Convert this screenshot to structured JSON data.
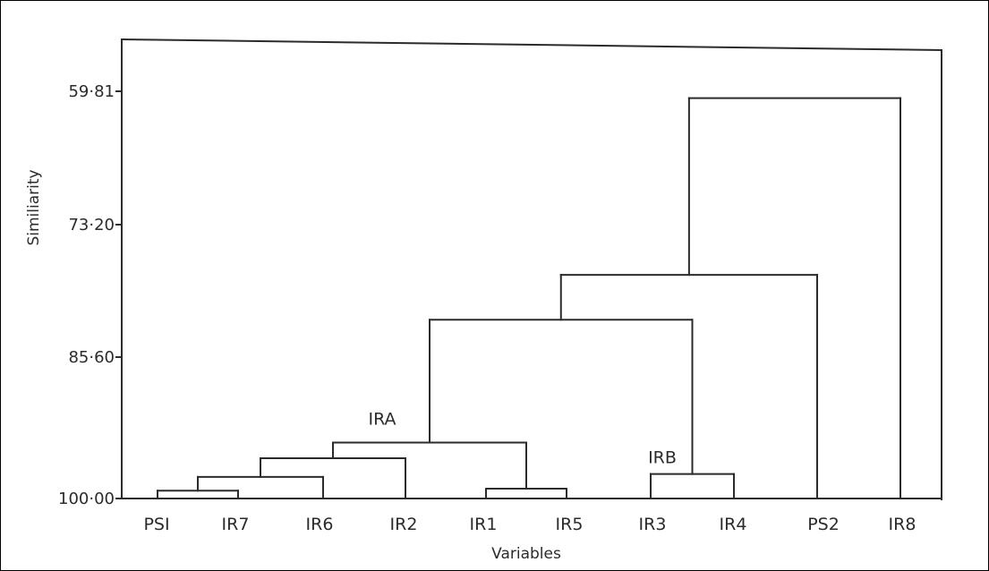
{
  "chart_data": {
    "type": "dendrogram",
    "xlabel": "Variables",
    "ylabel": "Similiarity",
    "yticks": [
      "59·81",
      "73·20",
      "85·60",
      "100·00"
    ],
    "ytick_values": [
      59.81,
      73.2,
      85.6,
      100.0
    ],
    "ylim": [
      100.0,
      59.81
    ],
    "leaves": [
      "PSI",
      "IR7",
      "IR6",
      "IR2",
      "IR1",
      "IR5",
      "IR3",
      "IR4",
      "PS2",
      "IR8"
    ],
    "merges": [
      {
        "left": "PSI",
        "right": "IR7",
        "similarity": 99.2
      },
      {
        "left": "IR1",
        "right": "IR5",
        "similarity": 99.0
      },
      {
        "left": "(PSI,IR7)",
        "right": "IR6",
        "similarity": 97.8
      },
      {
        "left": "IR3",
        "right": "IR4",
        "similarity": 97.5
      },
      {
        "left": "(PSI,IR7,IR6)",
        "right": "IR2",
        "similarity": 95.9
      },
      {
        "left": "(PSI,IR7,IR6,IR2)",
        "right": "(IR1,IR5)",
        "similarity": 94.3
      },
      {
        "left": "IRA",
        "right": "IRB",
        "similarity": 82.1
      },
      {
        "left": "(IRA,IRB)",
        "right": "PS2",
        "similarity": 77.9
      },
      {
        "left": "(IRA,IRB,PS2)",
        "right": "IR8",
        "similarity": 60.5
      }
    ],
    "cluster_labels": [
      {
        "text": "IRA",
        "attached_to": "(PSI,IR7,IR6,IR2)-(IR1,IR5)"
      },
      {
        "text": "IRB",
        "attached_to": "IR3-IR4"
      }
    ],
    "grid": false
  }
}
